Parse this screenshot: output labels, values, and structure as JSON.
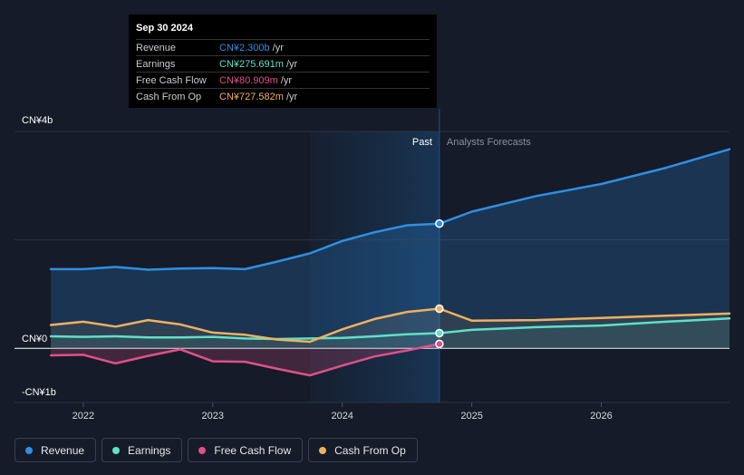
{
  "tooltip": {
    "date": "Sep 30 2024",
    "rows": [
      {
        "label": "Revenue",
        "value": "CN¥2.300b",
        "unit": "/yr",
        "color": "#2f8fe3"
      },
      {
        "label": "Earnings",
        "value": "CN¥275.691m",
        "unit": "/yr",
        "color": "#5fe0c8"
      },
      {
        "label": "Free Cash Flow",
        "value": "CN¥80.909m",
        "unit": "/yr",
        "color": "#e0508a"
      },
      {
        "label": "Cash From Op",
        "value": "CN¥727.582m",
        "unit": "/yr",
        "color": "#f0b060"
      }
    ]
  },
  "chart_data": {
    "type": "line",
    "y_unit": "CN¥ b",
    "ylim": [
      -1,
      4
    ],
    "y_tick_labels": [
      {
        "value": 4,
        "label": "CN¥4b"
      },
      {
        "value": 0,
        "label": "CN¥0"
      },
      {
        "value": -1,
        "label": "-CN¥1b"
      }
    ],
    "xlim": [
      2021.7,
      2026.99
    ],
    "x_tick_labels": [
      {
        "value": 2022,
        "label": "2022"
      },
      {
        "value": 2023,
        "label": "2023"
      },
      {
        "value": 2024,
        "label": "2024"
      },
      {
        "value": 2025,
        "label": "2025"
      },
      {
        "value": 2026,
        "label": "2026"
      }
    ],
    "past_label": "Past",
    "forecast_label": "Analysts Forecasts",
    "past_end": 2024.75,
    "highlight_start": 2023.75,
    "series": [
      {
        "name": "Revenue",
        "color": "#2f8fe3",
        "points": [
          [
            2021.75,
            1.46
          ],
          [
            2022.0,
            1.46
          ],
          [
            2022.25,
            1.5
          ],
          [
            2022.5,
            1.45
          ],
          [
            2022.75,
            1.47
          ],
          [
            2023.0,
            1.48
          ],
          [
            2023.25,
            1.46
          ],
          [
            2023.5,
            1.6
          ],
          [
            2023.75,
            1.75
          ],
          [
            2024.0,
            1.98
          ],
          [
            2024.25,
            2.14
          ],
          [
            2024.5,
            2.27
          ],
          [
            2024.75,
            2.3
          ],
          [
            2025.0,
            2.52
          ],
          [
            2025.5,
            2.81
          ],
          [
            2026.0,
            3.03
          ],
          [
            2026.5,
            3.33
          ],
          [
            2026.99,
            3.67
          ]
        ]
      },
      {
        "name": "Earnings",
        "color": "#5fe0c8",
        "points": [
          [
            2021.75,
            0.22
          ],
          [
            2022.0,
            0.21
          ],
          [
            2022.25,
            0.22
          ],
          [
            2022.5,
            0.2
          ],
          [
            2022.75,
            0.2
          ],
          [
            2023.0,
            0.21
          ],
          [
            2023.25,
            0.18
          ],
          [
            2023.5,
            0.17
          ],
          [
            2023.75,
            0.18
          ],
          [
            2024.0,
            0.19
          ],
          [
            2024.25,
            0.22
          ],
          [
            2024.5,
            0.26
          ],
          [
            2024.75,
            0.28
          ],
          [
            2025.0,
            0.34
          ],
          [
            2025.5,
            0.39
          ],
          [
            2026.0,
            0.42
          ],
          [
            2026.5,
            0.49
          ],
          [
            2026.99,
            0.55
          ]
        ]
      },
      {
        "name": "Free Cash Flow",
        "color": "#e0508a",
        "points": [
          [
            2021.75,
            -0.13
          ],
          [
            2022.0,
            -0.12
          ],
          [
            2022.25,
            -0.28
          ],
          [
            2022.5,
            -0.14
          ],
          [
            2022.75,
            -0.02
          ],
          [
            2023.0,
            -0.24
          ],
          [
            2023.25,
            -0.25
          ],
          [
            2023.5,
            -0.38
          ],
          [
            2023.75,
            -0.5
          ],
          [
            2024.0,
            -0.32
          ],
          [
            2024.25,
            -0.15
          ],
          [
            2024.5,
            -0.04
          ],
          [
            2024.75,
            0.08
          ]
        ]
      },
      {
        "name": "Cash From Op",
        "color": "#f0b060",
        "points": [
          [
            2021.75,
            0.43
          ],
          [
            2022.0,
            0.49
          ],
          [
            2022.25,
            0.4
          ],
          [
            2022.5,
            0.52
          ],
          [
            2022.75,
            0.44
          ],
          [
            2023.0,
            0.29
          ],
          [
            2023.25,
            0.25
          ],
          [
            2023.5,
            0.16
          ],
          [
            2023.75,
            0.12
          ],
          [
            2024.0,
            0.35
          ],
          [
            2024.25,
            0.54
          ],
          [
            2024.5,
            0.67
          ],
          [
            2024.75,
            0.73
          ],
          [
            2025.0,
            0.51
          ],
          [
            2025.5,
            0.52
          ],
          [
            2026.0,
            0.56
          ],
          [
            2026.5,
            0.6
          ],
          [
            2026.99,
            0.64
          ]
        ]
      }
    ]
  },
  "legend": [
    {
      "label": "Revenue",
      "color": "#2f8fe3"
    },
    {
      "label": "Earnings",
      "color": "#5fe0c8"
    },
    {
      "label": "Free Cash Flow",
      "color": "#e0508a"
    },
    {
      "label": "Cash From Op",
      "color": "#f0b060"
    }
  ]
}
